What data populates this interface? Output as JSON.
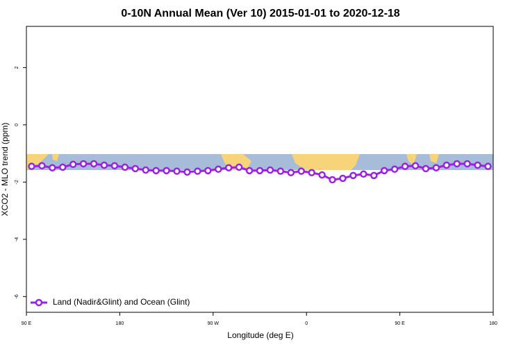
{
  "chart_data": {
    "type": "line",
    "title": "0-10N Annual Mean (Ver 10)   2015-01-01 to 2020-12-18",
    "x_label": "Longitude (deg E)",
    "y_label": "XCO2 - MLO trend (ppm)",
    "x": [
      95,
      105,
      115,
      125,
      135,
      145,
      155,
      165,
      175,
      185,
      195,
      205,
      215,
      225,
      235,
      245,
      255,
      265,
      275,
      285,
      295,
      305,
      315,
      325,
      335,
      345,
      355,
      365,
      375,
      385,
      395,
      405,
      415,
      425,
      435,
      445,
      455,
      465,
      475,
      485,
      495,
      505,
      515,
      525,
      535
    ],
    "series": [
      {
        "name": "Land (Nadir&Glint) and Ocean (Glint)",
        "color": "#9b22e0",
        "values": [
          -1.45,
          -1.43,
          -1.5,
          -1.48,
          -1.38,
          -1.36,
          -1.36,
          -1.41,
          -1.43,
          -1.48,
          -1.53,
          -1.58,
          -1.6,
          -1.6,
          -1.62,
          -1.65,
          -1.62,
          -1.6,
          -1.55,
          -1.5,
          -1.48,
          -1.6,
          -1.6,
          -1.58,
          -1.62,
          -1.67,
          -1.62,
          -1.67,
          -1.75,
          -1.92,
          -1.87,
          -1.77,
          -1.72,
          -1.77,
          -1.6,
          -1.55,
          -1.45,
          -1.43,
          -1.53,
          -1.5,
          -1.41,
          -1.36,
          -1.36,
          -1.41,
          -1.45
        ]
      }
    ],
    "xlim": [
      90,
      540
    ],
    "xticks": [
      {
        "value": 90,
        "label": "90 E"
      },
      180,
      {
        "value": 270,
        "label": "90 W"
      },
      {
        "value": 360,
        "label": "0"
      },
      {
        "value": 450,
        "label": "90 E"
      },
      {
        "value": 540,
        "label": "180"
      }
    ],
    "ylim": [
      -6.55,
      3.44
    ],
    "yticks": [
      2,
      0,
      -2,
      -4,
      -6
    ],
    "legend": "bottom-left"
  }
}
